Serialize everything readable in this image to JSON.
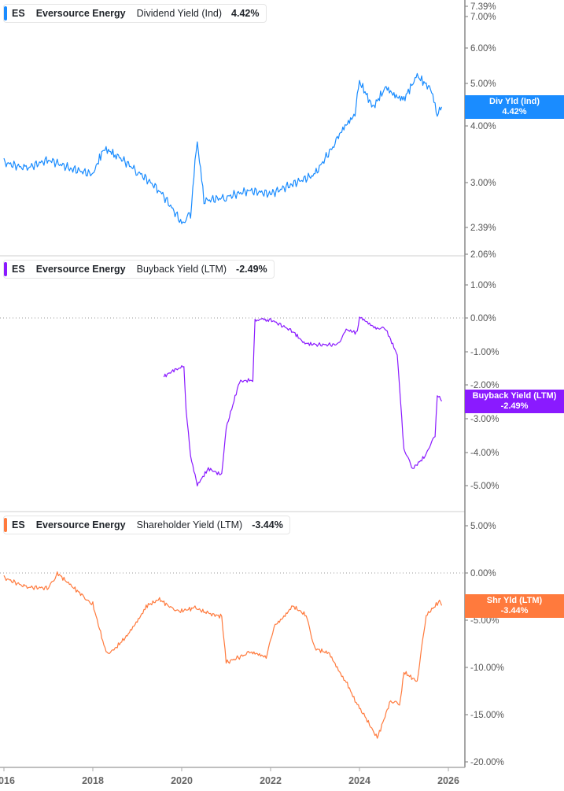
{
  "colors": {
    "dividend": "#1a8cff",
    "buyback": "#8a1aff",
    "shareholder": "#ff7a3d",
    "axis": "#888888",
    "tick_text": "#555555"
  },
  "panels": [
    {
      "legend": {
        "ticker": "ES",
        "company": "Eversource Energy",
        "metric": "Dividend Yield (Ind)",
        "value": "4.42%"
      },
      "tag": {
        "label": "Div Yld (Ind)",
        "value": "4.42%"
      },
      "y_ticks": [
        "7.39%",
        "7.00%",
        "6.00%",
        "5.00%",
        "4.00%",
        "3.00%",
        "2.39%",
        "2.06%"
      ]
    },
    {
      "legend": {
        "ticker": "ES",
        "company": "Eversource Energy",
        "metric": "Buyback Yield (LTM)",
        "value": "-2.49%"
      },
      "tag": {
        "label": "Buyback Yield (LTM)",
        "value": "-2.49%"
      },
      "y_ticks": [
        "1.00%",
        "0.00%",
        "-1.00%",
        "-2.00%",
        "-3.00%",
        "-4.00%",
        "-5.00%"
      ]
    },
    {
      "legend": {
        "ticker": "ES",
        "company": "Eversource Energy",
        "metric": "Shareholder Yield (LTM)",
        "value": "-3.44%"
      },
      "tag": {
        "label": "Shr Yld (LTM)",
        "value": "-3.44%"
      },
      "y_ticks": [
        "5.00%",
        "0.00%",
        "-5.00%",
        "-10.00%",
        "-15.00%",
        "-20.00%"
      ]
    }
  ],
  "x_axis": {
    "ticks": [
      "2016",
      "2018",
      "2020",
      "2022",
      "2024",
      "2026"
    ]
  },
  "chart_data": [
    {
      "type": "line",
      "title": "ES Eversource Energy Dividend Yield (Ind)",
      "ylabel": "Dividend Yield (%)",
      "yscale": "log",
      "ylim": [
        2.06,
        7.39
      ],
      "x": [
        2016.0,
        2016.5,
        2017.0,
        2017.5,
        2018.0,
        2018.25,
        2018.5,
        2019.0,
        2019.5,
        2020.0,
        2020.2,
        2020.35,
        2020.5,
        2021.0,
        2021.5,
        2022.0,
        2022.5,
        2023.0,
        2023.5,
        2023.9,
        2024.0,
        2024.3,
        2024.6,
        2025.0,
        2025.3,
        2025.6,
        2025.75,
        2025.85
      ],
      "values": [
        3.3,
        3.2,
        3.35,
        3.2,
        3.1,
        3.55,
        3.45,
        3.15,
        2.85,
        2.4,
        2.5,
        3.7,
        2.7,
        2.75,
        2.85,
        2.8,
        2.95,
        3.1,
        3.7,
        4.3,
        5.05,
        4.4,
        4.9,
        4.6,
        5.2,
        4.85,
        4.2,
        4.42
      ]
    },
    {
      "type": "line",
      "title": "ES Eversource Energy Buyback Yield (LTM)",
      "ylabel": "Buyback Yield (%)",
      "ylim": [
        -5.5,
        1.5
      ],
      "x": [
        2019.6,
        2019.9,
        2020.05,
        2020.1,
        2020.2,
        2020.35,
        2020.6,
        2020.9,
        2021.0,
        2021.3,
        2021.6,
        2021.65,
        2022.0,
        2022.5,
        2022.75,
        2023.0,
        2023.5,
        2023.7,
        2023.95,
        2024.0,
        2024.4,
        2024.6,
        2024.85,
        2025.0,
        2025.2,
        2025.5,
        2025.7,
        2025.75,
        2025.85
      ],
      "values": [
        -1.75,
        -1.5,
        -1.45,
        -2.8,
        -4.1,
        -5.0,
        -4.5,
        -4.7,
        -3.3,
        -1.9,
        -1.85,
        -0.05,
        -0.05,
        -0.4,
        -0.75,
        -0.8,
        -0.8,
        -0.35,
        -0.45,
        0.0,
        -0.3,
        -0.35,
        -1.1,
        -3.95,
        -4.5,
        -4.1,
        -3.5,
        -2.3,
        -2.49
      ]
    },
    {
      "type": "line",
      "title": "ES Eversource Energy Shareholder Yield (LTM)",
      "ylabel": "Shareholder Yield (%)",
      "ylim": [
        -20.5,
        5.5
      ],
      "x": [
        2016.0,
        2016.5,
        2017.0,
        2017.2,
        2017.5,
        2017.8,
        2018.0,
        2018.3,
        2018.5,
        2018.8,
        2019.2,
        2019.5,
        2019.8,
        2020.0,
        2020.3,
        2020.6,
        2020.9,
        2021.0,
        2021.5,
        2021.9,
        2022.1,
        2022.5,
        2022.8,
        2023.0,
        2023.3,
        2023.7,
        2023.95,
        2024.1,
        2024.4,
        2024.7,
        2024.9,
        2025.0,
        2025.3,
        2025.5,
        2025.8,
        2025.85
      ],
      "values": [
        -0.5,
        -1.5,
        -1.6,
        0.0,
        -1.3,
        -2.5,
        -3.3,
        -8.5,
        -8.0,
        -6.5,
        -3.5,
        -2.8,
        -3.8,
        -4.0,
        -3.7,
        -4.3,
        -4.6,
        -9.5,
        -8.5,
        -8.8,
        -5.5,
        -3.5,
        -4.5,
        -8.0,
        -8.5,
        -11.5,
        -14.0,
        -15.0,
        -17.5,
        -13.5,
        -14.0,
        -10.5,
        -11.5,
        -4.5,
        -3.0,
        -3.44
      ]
    }
  ]
}
